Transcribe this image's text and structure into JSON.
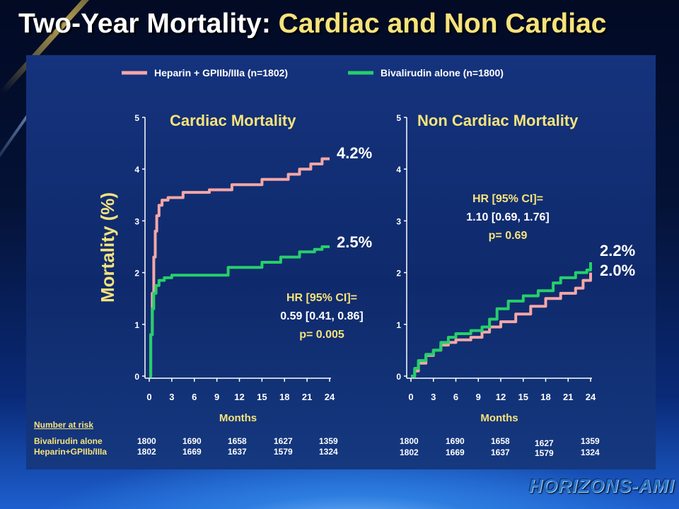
{
  "title": {
    "part1": "Two-Year Mortality: ",
    "part2": "Cardiac and Non Cardiac"
  },
  "colors": {
    "heparin": "#f4a7a7",
    "bivalirudin": "#26cf6a",
    "yellow": "#f6e37c",
    "white": "#ffffff"
  },
  "legend": [
    {
      "label": "Heparin + GPIIb/IIIa (n=1802)",
      "color": "#f4a7a7"
    },
    {
      "label": "Bivalirudin alone (n=1800)",
      "color": "#26cf6a"
    }
  ],
  "chart_data": [
    {
      "type": "line",
      "title": "Cardiac Mortality",
      "xlabel": "Months",
      "ylabel": "Mortality (%)",
      "xlim": [
        0,
        24
      ],
      "ylim": [
        0,
        5
      ],
      "xticks": [
        "0",
        "3",
        "6",
        "9",
        "12",
        "15",
        "18",
        "21",
        "24"
      ],
      "yticks": [
        "0",
        "1",
        "2",
        "3",
        "4",
        "5"
      ],
      "end_labels": [
        "4.2%",
        "2.5%"
      ],
      "annotation": {
        "line1": "HR [95% CI]=",
        "line2": "0.59 [0.41, 0.86]",
        "line3": "p= 0.005"
      },
      "series": [
        {
          "name": "Heparin + GPIIb/IIIa (n=1802)",
          "x": [
            0,
            0.2,
            0.4,
            0.6,
            0.8,
            1.0,
            1.3,
            1.7,
            2.5,
            4.5,
            8,
            11,
            15,
            18.5,
            20,
            21.5,
            23,
            24
          ],
          "y": [
            0,
            0.8,
            1.6,
            2.3,
            2.8,
            3.1,
            3.3,
            3.4,
            3.45,
            3.55,
            3.6,
            3.7,
            3.8,
            3.9,
            4.0,
            4.1,
            4.2,
            4.2
          ]
        },
        {
          "name": "Bivalirudin alone (n=1800)",
          "x": [
            0,
            0.2,
            0.4,
            0.6,
            0.9,
            1.3,
            2.0,
            3.0,
            5,
            10.5,
            15,
            17.5,
            20,
            22,
            23,
            24
          ],
          "y": [
            0,
            0.8,
            1.3,
            1.6,
            1.75,
            1.85,
            1.9,
            1.95,
            1.95,
            2.1,
            2.2,
            2.3,
            2.4,
            2.45,
            2.5,
            2.5
          ]
        }
      ]
    },
    {
      "type": "line",
      "title": "Non Cardiac Mortality",
      "xlabel": "Months",
      "xlim": [
        0,
        24
      ],
      "ylim": [
        0,
        5
      ],
      "xticks": [
        "0",
        "3",
        "6",
        "9",
        "12",
        "15",
        "18",
        "21",
        "24"
      ],
      "yticks": [
        "0",
        "1",
        "2",
        "3",
        "4",
        "5"
      ],
      "end_labels": [
        "2.2%",
        "2.0%"
      ],
      "annotation": {
        "line1": "HR [95% CI]=",
        "line2": "1.10 [0.69, 1.76]",
        "line3": "p= 0.69"
      },
      "series": [
        {
          "name": "Heparin + GPIIb/IIIa (n=1802)",
          "x": [
            0,
            0.5,
            1,
            2,
            3,
            4,
            5,
            6,
            8,
            9.5,
            10.5,
            12,
            14,
            16,
            18,
            20,
            22,
            23,
            24
          ],
          "y": [
            0,
            0.1,
            0.25,
            0.4,
            0.5,
            0.6,
            0.65,
            0.7,
            0.75,
            0.85,
            0.95,
            1.05,
            1.2,
            1.35,
            1.5,
            1.6,
            1.7,
            1.85,
            2.0
          ]
        },
        {
          "name": "Bivalirudin alone (n=1800)",
          "x": [
            0,
            0.5,
            1,
            2,
            3,
            4,
            5,
            6,
            8,
            9.5,
            10.5,
            11.5,
            13,
            15,
            17,
            19,
            20,
            22,
            23.5,
            24
          ],
          "y": [
            0,
            0.15,
            0.3,
            0.42,
            0.5,
            0.65,
            0.75,
            0.82,
            0.88,
            0.95,
            1.1,
            1.3,
            1.45,
            1.55,
            1.65,
            1.8,
            1.9,
            2.0,
            2.05,
            2.2
          ]
        }
      ]
    }
  ],
  "risk_table": {
    "header": "Number at risk",
    "rows": [
      {
        "label": "Bivalirudin alone",
        "left": [
          "1800",
          "1690",
          "1658",
          "1627",
          "1359"
        ],
        "right": [
          "1800",
          "1690",
          "1658",
          "1627",
          "1359"
        ]
      },
      {
        "label": "Heparin+GPIIb/IIIa",
        "left": [
          "1802",
          "1669",
          "1637",
          "1579",
          "1324"
        ],
        "right": [
          "1802",
          "1669",
          "1637",
          "1579",
          "1324"
        ]
      }
    ]
  },
  "logo": "HORIZONS-AMI"
}
